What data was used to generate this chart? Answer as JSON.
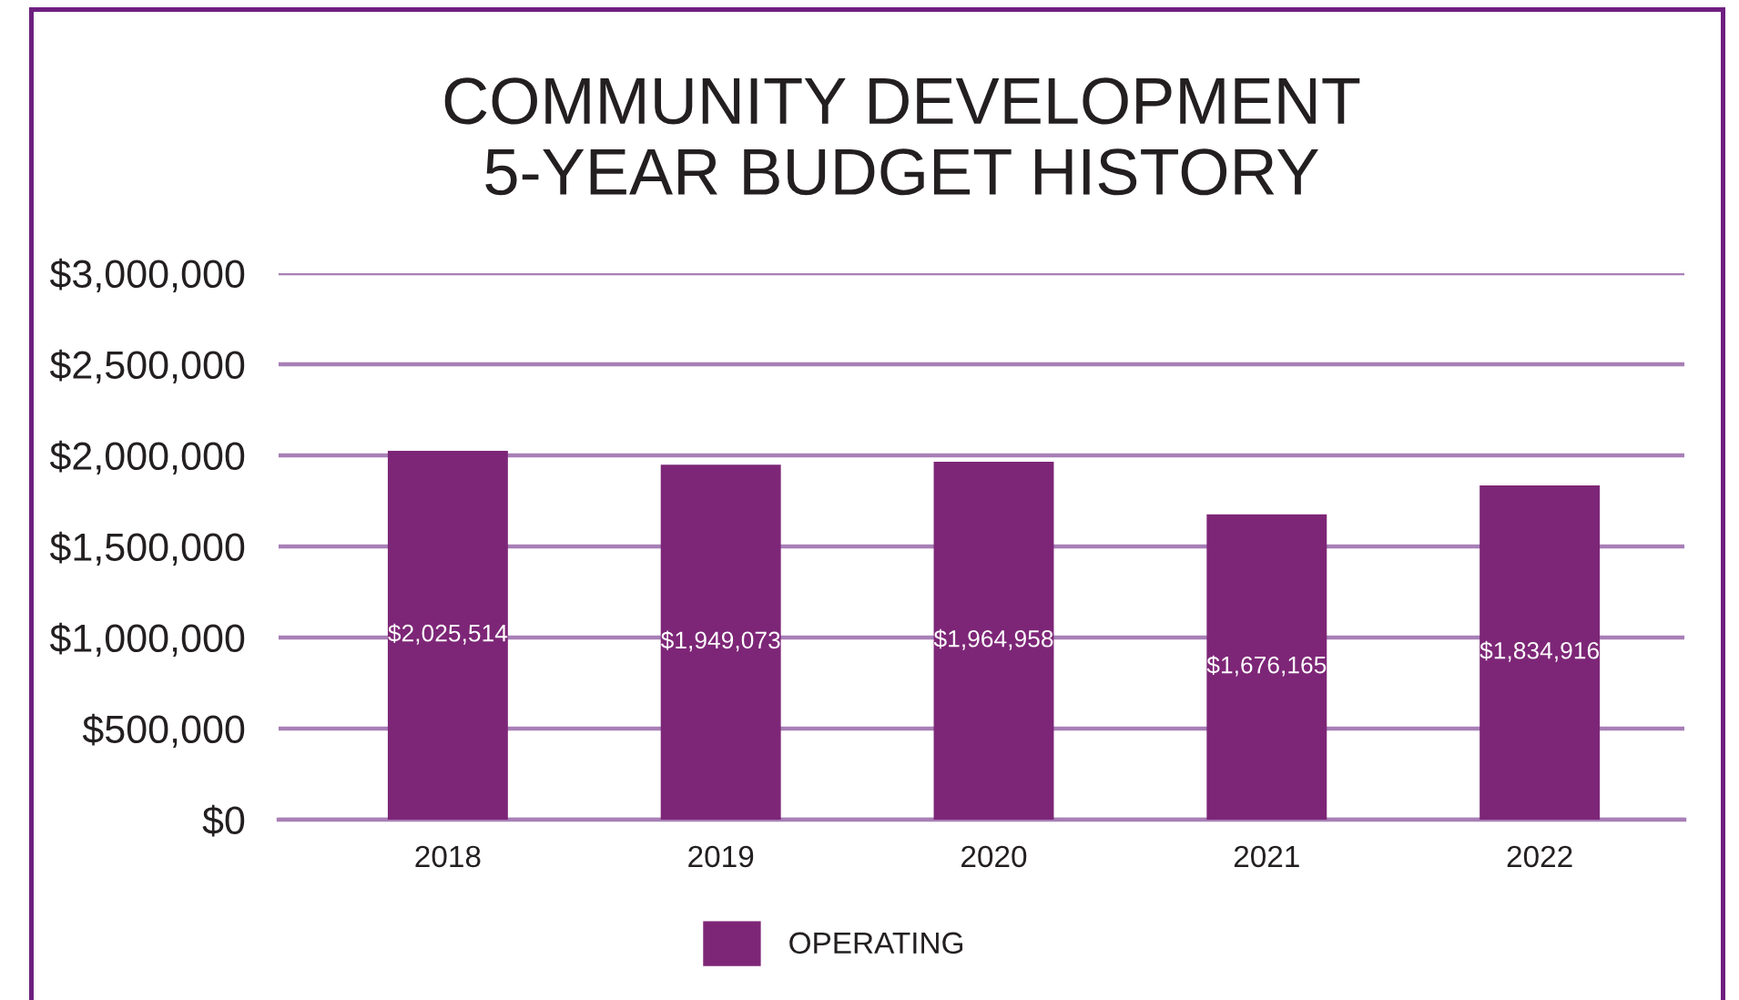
{
  "chart_data": {
    "type": "bar",
    "title": "COMMUNITY DEVELOPMENT\n5-YEAR BUDGET HISTORY",
    "categories": [
      "2018",
      "2019",
      "2020",
      "2021",
      "2022"
    ],
    "series": [
      {
        "name": "OPERATING",
        "color": "#7d2677",
        "values": [
          2025514,
          1949073,
          1964958,
          1676165,
          1834916
        ],
        "value_labels": [
          "$2,025,514",
          "$1,949,073",
          "$1,964,958",
          "$1,676,165",
          "$1,834,916"
        ]
      }
    ],
    "ylim": [
      0,
      3000000
    ],
    "yticks": [
      {
        "value": 0,
        "label": "$0"
      },
      {
        "value": 500000,
        "label": "$500,000"
      },
      {
        "value": 1000000,
        "label": "$1,000,000"
      },
      {
        "value": 1500000,
        "label": "$1,500,000"
      },
      {
        "value": 2000000,
        "label": "$2,000,000"
      },
      {
        "value": 2500000,
        "label": "$2,500,000"
      },
      {
        "value": 3000000,
        "label": "$3,000,000"
      }
    ],
    "grid": "y",
    "legend": "bottom"
  }
}
